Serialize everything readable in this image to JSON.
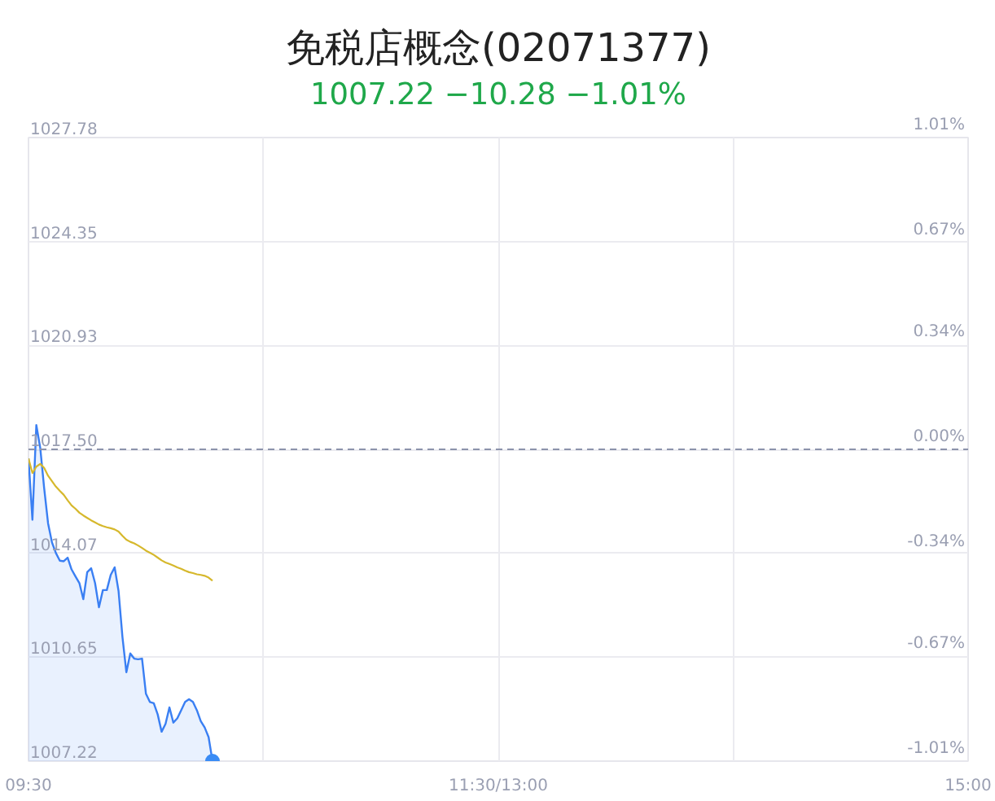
{
  "chart_data": {
    "type": "line",
    "title": "免税店概念(02071377)",
    "subtitle": "1007.22 −10.28 −1.01%",
    "categories": [
      "09:30",
      null,
      null,
      null,
      null,
      null,
      null,
      null,
      null,
      null,
      null,
      null,
      null,
      null,
      null,
      null,
      null,
      null,
      null,
      null,
      null,
      null,
      null,
      null,
      null,
      null,
      null,
      null,
      null,
      null,
      null,
      null,
      null,
      null,
      null,
      null,
      null,
      null,
      null,
      null,
      null,
      null,
      null,
      null,
      null,
      null,
      null,
      null,
      null,
      null,
      null,
      null,
      null,
      null,
      null,
      null,
      null,
      null,
      null,
      null,
      null,
      null,
      null,
      null,
      null,
      null,
      null,
      null,
      null,
      null,
      null,
      null,
      null,
      null,
      null,
      null,
      null,
      null,
      null,
      null,
      null,
      null,
      null,
      null,
      null,
      null,
      null,
      null,
      null,
      null,
      null,
      null,
      null,
      null,
      null,
      null,
      null,
      null,
      null,
      null,
      null,
      null,
      null,
      null,
      null,
      null,
      null,
      null,
      null,
      null,
      null,
      null,
      null,
      null,
      null,
      null,
      null,
      null,
      null,
      null,
      "11:30/13:00",
      null,
      null,
      null,
      null,
      null,
      null,
      null,
      null,
      null,
      null,
      null,
      null,
      null,
      null,
      null,
      null,
      null,
      null,
      null,
      null,
      null,
      null,
      null,
      null,
      null,
      null,
      null,
      null,
      null,
      null,
      null,
      null,
      null,
      null,
      null,
      null,
      null,
      null,
      null,
      null,
      null,
      null,
      null,
      null,
      null,
      null,
      null,
      null,
      null,
      null,
      null,
      null,
      null,
      null,
      null,
      null,
      null,
      null,
      null,
      null,
      null,
      null,
      null,
      null,
      null,
      null,
      null,
      null,
      null,
      null,
      null,
      null,
      null,
      null,
      null,
      null,
      null,
      null,
      null,
      null,
      null,
      null,
      null,
      null,
      null,
      null,
      null,
      null,
      null,
      null,
      null,
      null,
      null,
      null,
      null,
      null,
      null,
      null,
      null,
      null,
      null,
      null,
      null,
      null,
      null,
      null,
      null,
      null,
      null,
      null,
      null,
      null,
      null,
      null,
      null,
      null,
      null,
      null,
      null,
      "15:00"
    ],
    "ylim": [
      1007.22,
      1027.78
    ],
    "yticks": [
      {
        "value": 1007.22,
        "label": "1007.22"
      },
      {
        "value": 1010.65,
        "label": "1010.65"
      },
      {
        "value": 1014.07,
        "label": "1014.07"
      },
      {
        "value": 1017.5,
        "label": "1017.50"
      },
      {
        "value": 1020.93,
        "label": "1020.93"
      },
      {
        "value": 1024.35,
        "label": "1024.35"
      },
      {
        "value": 1027.78,
        "label": "1027.78"
      }
    ],
    "y2lim": [
      -1.01,
      1.01
    ],
    "y2ticks": [
      {
        "value": -1.01,
        "label": "-1.01%"
      },
      {
        "value": -0.67,
        "label": "-0.67%"
      },
      {
        "value": -0.34,
        "label": "-0.34%"
      },
      {
        "value": 0,
        "label": "0.00%"
      },
      {
        "value": 0.34,
        "label": "0.34%"
      },
      {
        "value": 0.67,
        "label": "0.67%"
      },
      {
        "value": 1.01,
        "label": "1.01%"
      }
    ],
    "grid": true,
    "ref_lines": [
      {
        "axis": "y",
        "value": 1017.5,
        "color": "#8c93ab",
        "line_style": "dashed"
      }
    ],
    "series": [
      {
        "type": "area",
        "color": "#3a7ff3",
        "values": [
          1017.2,
          1015.18,
          1018.3,
          1017.55,
          1016.22,
          1015.06,
          1014.43,
          1014.08,
          1013.83,
          1013.81,
          1013.93,
          1013.54,
          1013.31,
          1013.09,
          1012.56,
          1013.45,
          1013.58,
          1013.09,
          1012.29,
          1012.86,
          1012.86,
          1013.36,
          1013.61,
          1012.83,
          1011.31,
          1010.15,
          1010.77,
          1010.6,
          1010.58,
          1010.6,
          1009.44,
          1009.17,
          1009.13,
          1008.76,
          1008.19,
          1008.45,
          1008.99,
          1008.49,
          1008.63,
          1008.9,
          1009.17,
          1009.26,
          1009.17,
          1008.9,
          1008.54,
          1008.33,
          1008.01,
          1007.22,
          null,
          null,
          null,
          null,
          null,
          null,
          null,
          null,
          null,
          null,
          null,
          null,
          null,
          null,
          null,
          null,
          null,
          null,
          null,
          null,
          null,
          null,
          null,
          null,
          null,
          null,
          null,
          null,
          null,
          null,
          null,
          null,
          null,
          null,
          null,
          null,
          null,
          null,
          null,
          null,
          null,
          null,
          null,
          null,
          null,
          null,
          null,
          null,
          null,
          null,
          null,
          null,
          null,
          null,
          null,
          null,
          null,
          null,
          null,
          null,
          null,
          null,
          null,
          null,
          null,
          null,
          null,
          null,
          null,
          null,
          null,
          null,
          null,
          null,
          null,
          null,
          null,
          null,
          null,
          null,
          null,
          null,
          null,
          null,
          null,
          null,
          null,
          null,
          null,
          null,
          null,
          null,
          null,
          null,
          null,
          null,
          null,
          null,
          null,
          null,
          null,
          null,
          null,
          null,
          null,
          null,
          null,
          null,
          null,
          null,
          null,
          null,
          null,
          null,
          null,
          null,
          null,
          null,
          null,
          null,
          null,
          null,
          null,
          null,
          null,
          null,
          null,
          null,
          null,
          null,
          null,
          null,
          null,
          null,
          null,
          null,
          null,
          null,
          null,
          null,
          null,
          null,
          null,
          null,
          null,
          null,
          null,
          null,
          null,
          null,
          null,
          null,
          null,
          null,
          null,
          null,
          null,
          null,
          null,
          null,
          null,
          null,
          null,
          null,
          null,
          null,
          null,
          null,
          null,
          null,
          null,
          null,
          null,
          null,
          null,
          null,
          null,
          null,
          null,
          null,
          null,
          null,
          null,
          null,
          null,
          null,
          null,
          null,
          null,
          null,
          null,
          null,
          null
        ]
      },
      {
        "color": "#d6b82c",
        "values": [
          1017.2,
          1016.72,
          1016.93,
          1017.02,
          1016.89,
          1016.63,
          1016.45,
          1016.27,
          1016.13,
          1016.0,
          1015.82,
          1015.65,
          1015.54,
          1015.41,
          1015.32,
          1015.24,
          1015.16,
          1015.09,
          1015.02,
          1014.97,
          1014.93,
          1014.9,
          1014.86,
          1014.79,
          1014.65,
          1014.52,
          1014.45,
          1014.4,
          1014.33,
          1014.25,
          1014.16,
          1014.09,
          1014.02,
          1013.93,
          1013.84,
          1013.77,
          1013.72,
          1013.67,
          1013.61,
          1013.56,
          1013.5,
          1013.45,
          1013.42,
          1013.38,
          1013.36,
          1013.33,
          1013.27,
          1013.17,
          null,
          null,
          null,
          null,
          null,
          null,
          null,
          null,
          null,
          null,
          null,
          null,
          null,
          null,
          null,
          null,
          null,
          null,
          null,
          null,
          null,
          null,
          null,
          null,
          null,
          null,
          null,
          null,
          null,
          null,
          null,
          null,
          null,
          null,
          null,
          null,
          null,
          null,
          null,
          null,
          null,
          null,
          null,
          null,
          null,
          null,
          null,
          null,
          null,
          null,
          null,
          null,
          null,
          null,
          null,
          null,
          null,
          null,
          null,
          null,
          null,
          null,
          null,
          null,
          null,
          null,
          null,
          null,
          null,
          null,
          null,
          null,
          null,
          null,
          null,
          null,
          null,
          null,
          null,
          null,
          null,
          null,
          null,
          null,
          null,
          null,
          null,
          null,
          null,
          null,
          null,
          null,
          null,
          null,
          null,
          null,
          null,
          null,
          null,
          null,
          null,
          null,
          null,
          null,
          null,
          null,
          null,
          null,
          null,
          null,
          null,
          null,
          null,
          null,
          null,
          null,
          null,
          null,
          null,
          null,
          null,
          null,
          null,
          null,
          null,
          null,
          null,
          null,
          null,
          null,
          null,
          null,
          null,
          null,
          null,
          null,
          null,
          null,
          null,
          null,
          null,
          null,
          null,
          null,
          null,
          null,
          null,
          null,
          null,
          null,
          null,
          null,
          null,
          null,
          null,
          null,
          null,
          null,
          null,
          null,
          null,
          null,
          null,
          null,
          null,
          null,
          null,
          null,
          null,
          null,
          null,
          null,
          null,
          null,
          null,
          null,
          null,
          null,
          null,
          null,
          null,
          null,
          null,
          null,
          null,
          null,
          null,
          null,
          null,
          null,
          null,
          null,
          null
        ]
      },
      {
        "type": "scatter",
        "color": "#3a8cf5",
        "values": [
          null,
          null,
          null,
          null,
          null,
          null,
          null,
          null,
          null,
          null,
          null,
          null,
          null,
          null,
          null,
          null,
          null,
          null,
          null,
          null,
          null,
          null,
          null,
          null,
          null,
          null,
          null,
          null,
          null,
          null,
          null,
          null,
          null,
          null,
          null,
          null,
          null,
          null,
          null,
          null,
          null,
          null,
          null,
          null,
          null,
          null,
          null,
          1007.22,
          null,
          null,
          null,
          null,
          null,
          null,
          null,
          null,
          null,
          null,
          null,
          null,
          null,
          null,
          null,
          null,
          null,
          null,
          null,
          null,
          null,
          null,
          null,
          null,
          null,
          null,
          null,
          null,
          null,
          null,
          null,
          null,
          null,
          null,
          null,
          null,
          null,
          null,
          null,
          null,
          null,
          null,
          null,
          null,
          null,
          null,
          null,
          null,
          null,
          null,
          null,
          null,
          null,
          null,
          null,
          null,
          null,
          null,
          null,
          null,
          null,
          null,
          null,
          null,
          null,
          null,
          null,
          null,
          null,
          null,
          null,
          null,
          null,
          null,
          null,
          null,
          null,
          null,
          null,
          null,
          null,
          null,
          null,
          null,
          null,
          null,
          null,
          null,
          null,
          null,
          null,
          null,
          null,
          null,
          null,
          null,
          null,
          null,
          null,
          null,
          null,
          null,
          null,
          null,
          null,
          null,
          null,
          null,
          null,
          null,
          null,
          null,
          null,
          null,
          null,
          null,
          null,
          null,
          null,
          null,
          null,
          null,
          null,
          null,
          null,
          null,
          null,
          null,
          null,
          null,
          null,
          null,
          null,
          null,
          null,
          null,
          null,
          null,
          null,
          null,
          null,
          null,
          null,
          null,
          null,
          null,
          null,
          null,
          null,
          null,
          null,
          null,
          null,
          null,
          null,
          null,
          null,
          null,
          null,
          null,
          null,
          null,
          null,
          null,
          null,
          null,
          null,
          null,
          null,
          null,
          null,
          null,
          null,
          null,
          null,
          null,
          null,
          null,
          null,
          null,
          null,
          null,
          null,
          null,
          null,
          null,
          null,
          null,
          null,
          null,
          null,
          null,
          null
        ]
      }
    ]
  }
}
